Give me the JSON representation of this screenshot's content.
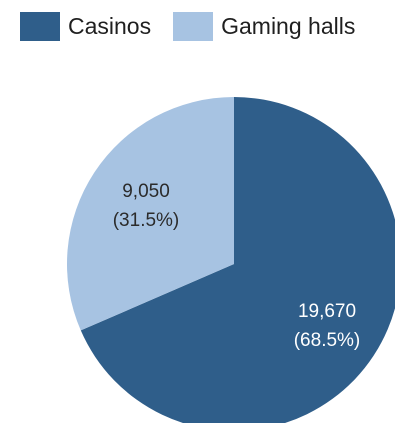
{
  "chart_data": {
    "type": "pie",
    "title": "",
    "categories": [
      "Casinos",
      "Gaming halls"
    ],
    "values": [
      19670,
      9050
    ],
    "percentages": [
      68.5,
      31.5
    ],
    "value_labels": [
      "19,670",
      "9,050"
    ],
    "percent_labels": [
      "(68.5%)",
      "(31.5%)"
    ],
    "colors": [
      "#2f5e8a",
      "#a7c3e2"
    ],
    "label_colors": [
      "#ffffff",
      "#2b2b2b"
    ],
    "start_angle_deg": 0,
    "direction": "clockwise",
    "legend": {
      "placement": "top-left",
      "items": [
        {
          "label": "Casinos",
          "color": "#2f5e8a"
        },
        {
          "label": "Gaming halls",
          "color": "#a7c3e2"
        }
      ]
    }
  }
}
